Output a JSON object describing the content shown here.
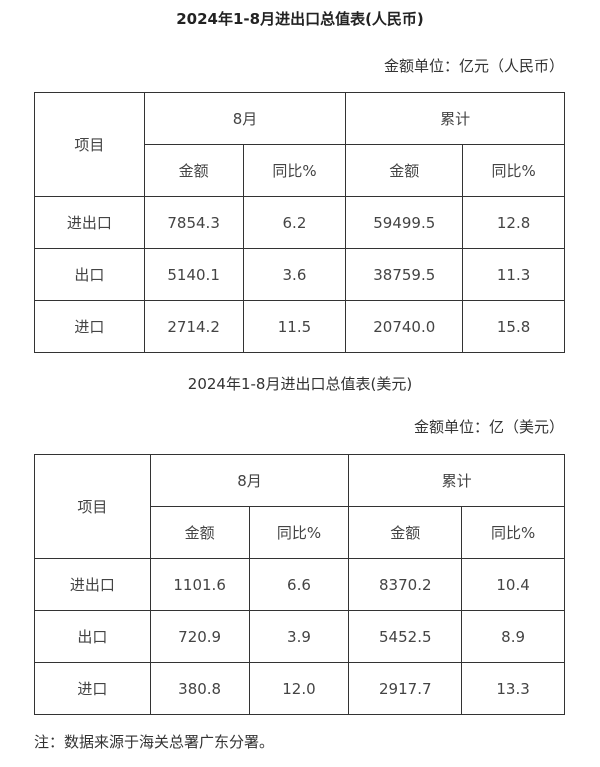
{
  "rmb": {
    "title": "2024年1-8月进出口总值表(人民币)",
    "unit": "金额单位：亿元（人民币）",
    "header": {
      "item": "项目",
      "month": "8月",
      "cumulative": "累计",
      "amount": "金额",
      "yoy": "同比%"
    },
    "rows": [
      {
        "name": "进出口",
        "m_amount": "7854.3",
        "m_yoy": "6.2",
        "c_amount": "59499.5",
        "c_yoy": "12.8"
      },
      {
        "name": "出口",
        "m_amount": "5140.1",
        "m_yoy": "3.6",
        "c_amount": "38759.5",
        "c_yoy": "11.3"
      },
      {
        "name": "进口",
        "m_amount": "2714.2",
        "m_yoy": "11.5",
        "c_amount": "20740.0",
        "c_yoy": "15.8"
      }
    ]
  },
  "usd": {
    "title": "2024年1-8月进出口总值表(美元)",
    "unit": "金额单位：亿（美元）",
    "header": {
      "item": "项目",
      "month": "8月",
      "cumulative": "累计",
      "amount": "金额",
      "yoy": "同比%"
    },
    "rows": [
      {
        "name": "进出口",
        "m_amount": "1101.6",
        "m_yoy": "6.6",
        "c_amount": "8370.2",
        "c_yoy": "10.4"
      },
      {
        "name": "出口",
        "m_amount": "720.9",
        "m_yoy": "3.9",
        "c_amount": "5452.5",
        "c_yoy": "8.9"
      },
      {
        "name": "进口",
        "m_amount": "380.8",
        "m_yoy": "12.0",
        "c_amount": "2917.7",
        "c_yoy": "13.3"
      }
    ]
  },
  "note": "注：数据来源于海关总署广东分署。"
}
